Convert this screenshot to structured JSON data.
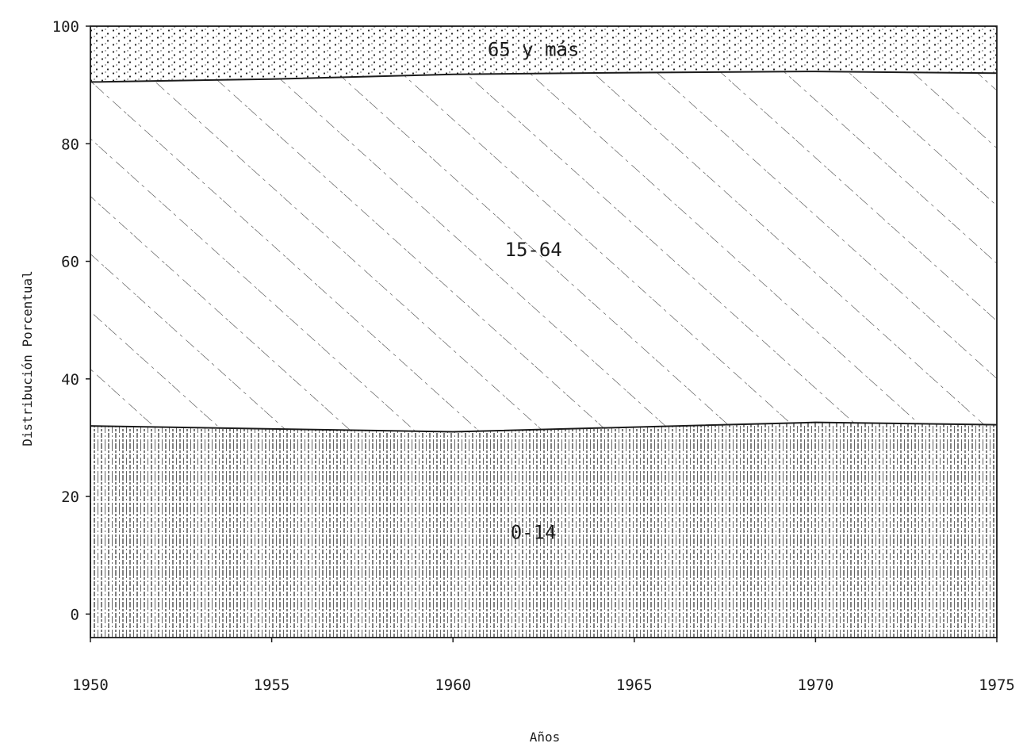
{
  "chart_data": {
    "type": "area",
    "stacked": true,
    "title": "",
    "xlabel": "Años",
    "ylabel": "Distribución Porcentual",
    "x": [
      1950,
      1955,
      1960,
      1965,
      1970,
      1975
    ],
    "xlim": [
      1950,
      1975
    ],
    "ylim": [
      -4,
      100
    ],
    "x_ticks": [
      1950,
      1955,
      1960,
      1965,
      1970,
      1975
    ],
    "y_ticks": [
      0,
      20,
      40,
      60,
      80,
      100
    ],
    "series": [
      {
        "name": "0-14",
        "values": [
          32,
          31.5,
          31,
          31.8,
          32.6,
          32.2
        ],
        "fill": "vertical-hatch"
      },
      {
        "name": "15-64",
        "values": [
          58.5,
          59.5,
          60.8,
          60.3,
          59.7,
          59.8
        ],
        "fill": "diagonal-hatch"
      },
      {
        "name": "65 y más",
        "values": [
          9.5,
          9,
          8.2,
          7.9,
          7.7,
          8
        ],
        "fill": "dotted"
      }
    ],
    "grid": false,
    "legend": "none",
    "colors": {
      "ink": "#1c1c1c",
      "paper": "#ffffff"
    }
  }
}
